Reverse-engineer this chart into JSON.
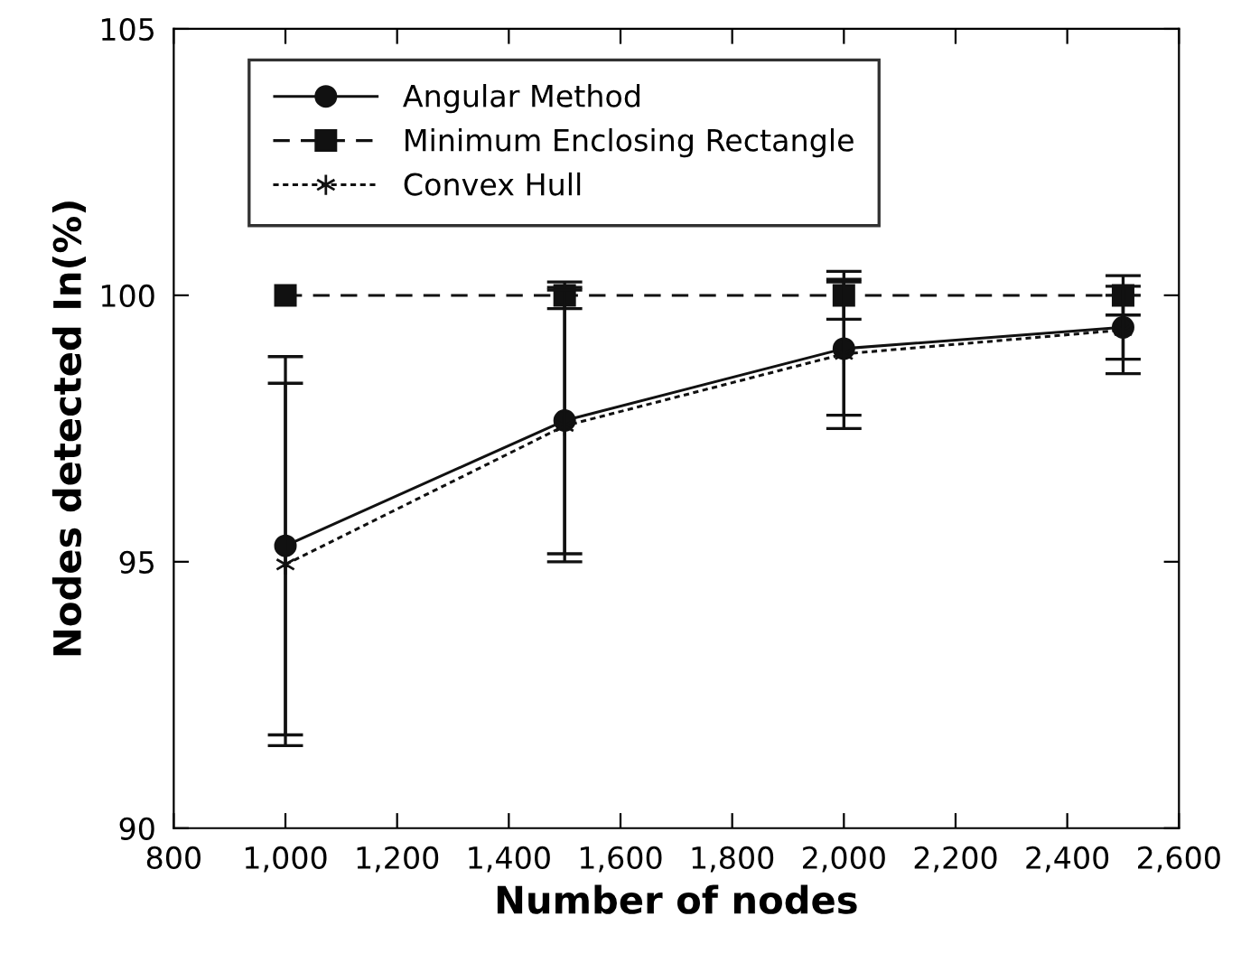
{
  "chart_data": {
    "type": "line",
    "xlabel": "Number of nodes",
    "ylabel": "Nodes detected In(%)",
    "x": [
      1000,
      1500,
      2000,
      2500
    ],
    "series": [
      {
        "name": "Angular Method",
        "color": "#111111",
        "values": [
          95.3,
          97.65,
          99.0,
          99.4
        ],
        "errors": [
          3.55,
          2.5,
          1.25,
          0.6
        ],
        "marker": "circle",
        "line_style": "solid"
      },
      {
        "name": "Minimum Enclosing Rectangle",
        "color": "#111111",
        "values": [
          100,
          100,
          100,
          100
        ],
        "errors": [
          null,
          0.25,
          0.45,
          0.37
        ],
        "marker": "square",
        "line_style": "dashed"
      },
      {
        "name": "Convex Hull",
        "color": "#111111",
        "values": [
          94.95,
          97.55,
          98.9,
          99.35
        ],
        "errors": [
          3.4,
          2.55,
          1.4,
          0.82
        ],
        "marker": "cross",
        "line_style": "dotted"
      }
    ],
    "xlim": [
      800,
      2600
    ],
    "xticks": [
      {
        "value": 800,
        "label": "800"
      },
      {
        "value": 1000,
        "label": "1,000"
      },
      {
        "value": 1200,
        "label": "1,200"
      },
      {
        "value": 1400,
        "label": "1,400"
      },
      {
        "value": 1600,
        "label": "1,600"
      },
      {
        "value": 1800,
        "label": "1,800"
      },
      {
        "value": 2000,
        "label": "2,000"
      },
      {
        "value": 2200,
        "label": "2,200"
      },
      {
        "value": 2400,
        "label": "2,400"
      },
      {
        "value": 2600,
        "label": "2,600"
      }
    ],
    "ylim": [
      90,
      105
    ],
    "yticks": [
      90,
      95,
      100,
      105
    ],
    "grid": false,
    "legend": "top left"
  }
}
